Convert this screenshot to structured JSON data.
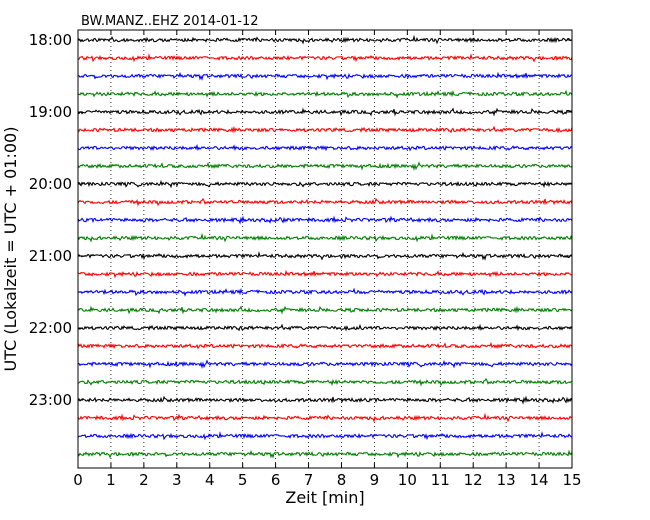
{
  "chart_data": {
    "type": "line",
    "title": "BW.MANZ..EHZ 2014-01-12",
    "xlabel": "Zeit  [min]",
    "ylabel": "UTC (Lokalzeit = UTC + 01:00)",
    "xlim": [
      0,
      15
    ],
    "x_ticks": [
      "0",
      "1",
      "2",
      "3",
      "4",
      "5",
      "6",
      "7",
      "8",
      "9",
      "10",
      "11",
      "12",
      "13",
      "14",
      "15"
    ],
    "y_ticks": [
      "18:00",
      "19:00",
      "20:00",
      "21:00",
      "22:00",
      "23:00"
    ],
    "grid": "vertical dotted lines at every minute",
    "trace_interval_min": 15,
    "first_trace": "18:00",
    "last_trace": "23:45",
    "trace_count": 24,
    "trace_colors": [
      "#000000",
      "#ff0000",
      "#0000ff",
      "#008000"
    ]
  }
}
